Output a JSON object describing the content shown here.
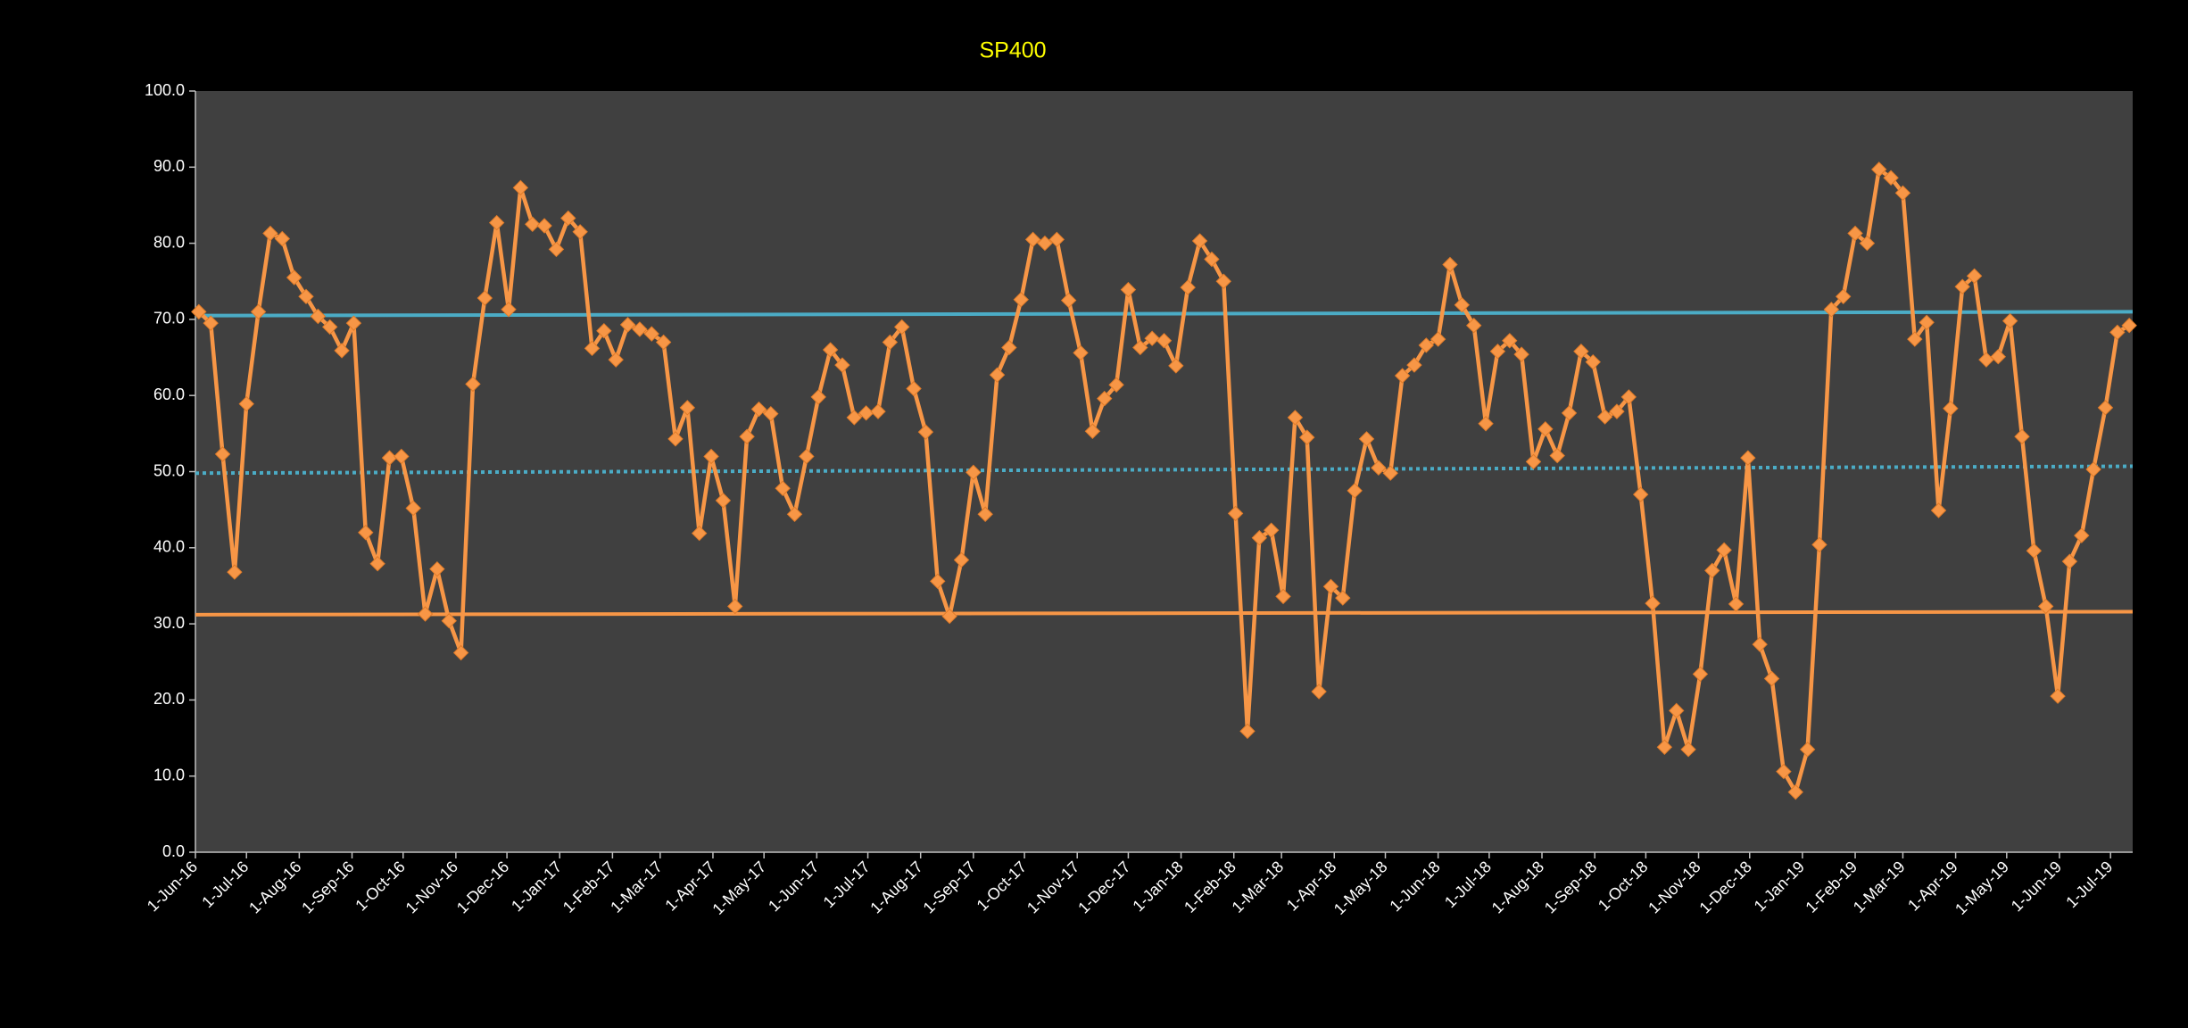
{
  "chart_data": {
    "type": "line",
    "title": "SP400",
    "x": [
      "2016-06-03",
      "2016-06-10",
      "2016-06-17",
      "2016-06-24",
      "2016-07-01",
      "2016-07-08",
      "2016-07-15",
      "2016-07-22",
      "2016-07-29",
      "2016-08-05",
      "2016-08-12",
      "2016-08-19",
      "2016-08-26",
      "2016-09-02",
      "2016-09-09",
      "2016-09-16",
      "2016-09-23",
      "2016-09-30",
      "2016-10-07",
      "2016-10-14",
      "2016-10-21",
      "2016-10-28",
      "2016-11-04",
      "2016-11-11",
      "2016-11-18",
      "2016-11-25",
      "2016-12-02",
      "2016-12-09",
      "2016-12-16",
      "2016-12-23",
      "2016-12-30",
      "2017-01-06",
      "2017-01-13",
      "2017-01-20",
      "2017-01-27",
      "2017-02-03",
      "2017-02-10",
      "2017-02-17",
      "2017-02-24",
      "2017-03-03",
      "2017-03-10",
      "2017-03-17",
      "2017-03-24",
      "2017-03-31",
      "2017-04-07",
      "2017-04-14",
      "2017-04-21",
      "2017-04-28",
      "2017-05-05",
      "2017-05-12",
      "2017-05-19",
      "2017-05-26",
      "2017-06-02",
      "2017-06-09",
      "2017-06-16",
      "2017-06-23",
      "2017-06-30",
      "2017-07-07",
      "2017-07-14",
      "2017-07-21",
      "2017-07-28",
      "2017-08-04",
      "2017-08-11",
      "2017-08-18",
      "2017-08-25",
      "2017-09-01",
      "2017-09-08",
      "2017-09-15",
      "2017-09-22",
      "2017-09-29",
      "2017-10-06",
      "2017-10-13",
      "2017-10-20",
      "2017-10-27",
      "2017-11-03",
      "2017-11-10",
      "2017-11-17",
      "2017-11-24",
      "2017-12-01",
      "2017-12-08",
      "2017-12-15",
      "2017-12-22",
      "2017-12-29",
      "2018-01-05",
      "2018-01-12",
      "2018-01-19",
      "2018-01-26",
      "2018-02-02",
      "2018-02-09",
      "2018-02-16",
      "2018-02-23",
      "2018-03-02",
      "2018-03-09",
      "2018-03-16",
      "2018-03-23",
      "2018-03-30",
      "2018-04-06",
      "2018-04-13",
      "2018-04-20",
      "2018-04-27",
      "2018-05-04",
      "2018-05-11",
      "2018-05-18",
      "2018-05-25",
      "2018-06-01",
      "2018-06-08",
      "2018-06-15",
      "2018-06-22",
      "2018-06-29",
      "2018-07-06",
      "2018-07-13",
      "2018-07-20",
      "2018-07-27",
      "2018-08-03",
      "2018-08-10",
      "2018-08-17",
      "2018-08-24",
      "2018-08-31",
      "2018-09-07",
      "2018-09-14",
      "2018-09-21",
      "2018-09-28",
      "2018-10-05",
      "2018-10-12",
      "2018-10-19",
      "2018-10-26",
      "2018-11-02",
      "2018-11-09",
      "2018-11-16",
      "2018-11-23",
      "2018-11-30",
      "2018-12-07",
      "2018-12-14",
      "2018-12-21",
      "2018-12-28",
      "2019-01-04",
      "2019-01-11",
      "2019-01-18",
      "2019-01-25",
      "2019-02-01",
      "2019-02-08",
      "2019-02-15",
      "2019-02-22",
      "2019-03-01",
      "2019-03-08",
      "2019-03-15",
      "2019-03-22",
      "2019-03-29",
      "2019-04-05",
      "2019-04-12",
      "2019-04-19",
      "2019-04-26",
      "2019-05-03",
      "2019-05-10",
      "2019-05-17",
      "2019-05-24",
      "2019-05-31",
      "2019-06-07",
      "2019-06-14",
      "2019-06-21",
      "2019-06-28",
      "2019-07-05",
      "2019-07-12"
    ],
    "series": [
      {
        "color": "#f79646",
        "values": [
          71.0,
          69.5,
          52.3,
          36.8,
          58.9,
          71.0,
          81.3,
          80.6,
          75.5,
          73.0,
          70.4,
          69.0,
          65.9,
          69.5,
          42.0,
          37.9,
          51.8,
          52.0,
          45.2,
          31.3,
          37.2,
          30.4,
          26.2,
          61.5,
          72.8,
          82.7,
          71.3,
          87.3,
          82.5,
          82.3,
          79.2,
          83.3,
          81.5,
          66.2,
          68.5,
          64.7,
          69.3,
          68.7,
          68.1,
          67.0,
          54.3,
          58.4,
          41.9,
          52.0,
          46.2,
          32.3,
          54.6,
          58.2,
          57.6,
          47.8,
          44.4,
          52.0,
          59.8,
          66.0,
          64.0,
          57.1,
          57.7,
          57.9,
          67.0,
          69.0,
          60.9,
          55.2,
          35.6,
          31.0,
          38.4,
          49.9,
          44.4,
          62.7,
          66.3,
          72.6,
          80.5,
          80.0,
          80.5,
          72.5,
          65.6,
          55.3,
          59.6,
          61.4,
          73.9,
          66.3,
          67.5,
          67.2,
          63.9,
          74.2,
          80.3,
          77.9,
          75.0,
          44.5,
          15.9,
          41.3,
          42.3,
          33.6,
          57.1,
          54.5,
          21.1,
          34.9,
          33.4,
          47.5,
          54.3,
          50.5,
          49.8,
          62.6,
          64.0,
          66.6,
          67.4,
          77.2,
          71.9,
          69.2,
          56.3,
          65.8,
          67.2,
          65.4,
          51.3,
          55.6,
          52.1,
          57.7,
          65.8,
          64.4,
          57.2,
          57.9,
          59.8,
          47.0,
          32.7,
          13.8,
          18.6,
          13.5,
          23.4,
          37.0,
          39.7,
          32.6,
          51.8,
          27.3,
          22.8,
          10.6,
          7.9,
          13.5,
          40.4,
          71.3,
          73.0,
          81.3,
          80.0,
          89.7,
          88.6,
          86.6,
          67.4,
          69.6,
          44.9,
          58.3,
          74.3,
          75.7,
          64.7,
          65.1,
          69.8,
          54.6,
          39.6,
          32.3,
          20.5,
          38.2,
          41.6,
          50.3,
          58.4,
          68.3,
          69.2
        ]
      }
    ],
    "trend_lines": [
      {
        "color": "#4bacc6",
        "dashed": false,
        "values": [
          70.5,
          71.0
        ]
      },
      {
        "color": "#4bacc6",
        "dashed": true,
        "values": [
          49.8,
          50.7
        ]
      },
      {
        "color": "#f79646",
        "dashed": false,
        "values": [
          31.2,
          31.6
        ]
      }
    ],
    "xlim": [
      "2016-06-01",
      "2019-07-14"
    ],
    "xticks": [
      {
        "value": "2016-06-01",
        "label": "1-Jun-16"
      },
      {
        "value": "2016-07-01",
        "label": "1-Jul-16"
      },
      {
        "value": "2016-08-01",
        "label": "1-Aug-16"
      },
      {
        "value": "2016-09-01",
        "label": "1-Sep-16"
      },
      {
        "value": "2016-10-01",
        "label": "1-Oct-16"
      },
      {
        "value": "2016-11-01",
        "label": "1-Nov-16"
      },
      {
        "value": "2016-12-01",
        "label": "1-Dec-16"
      },
      {
        "value": "2017-01-01",
        "label": "1-Jan-17"
      },
      {
        "value": "2017-02-01",
        "label": "1-Feb-17"
      },
      {
        "value": "2017-03-01",
        "label": "1-Mar-17"
      },
      {
        "value": "2017-04-01",
        "label": "1-Apr-17"
      },
      {
        "value": "2017-05-01",
        "label": "1-May-17"
      },
      {
        "value": "2017-06-01",
        "label": "1-Jun-17"
      },
      {
        "value": "2017-07-01",
        "label": "1-Jul-17"
      },
      {
        "value": "2017-08-01",
        "label": "1-Aug-17"
      },
      {
        "value": "2017-09-01",
        "label": "1-Sep-17"
      },
      {
        "value": "2017-10-01",
        "label": "1-Oct-17"
      },
      {
        "value": "2017-11-01",
        "label": "1-Nov-17"
      },
      {
        "value": "2017-12-01",
        "label": "1-Dec-17"
      },
      {
        "value": "2018-01-01",
        "label": "1-Jan-18"
      },
      {
        "value": "2018-02-01",
        "label": "1-Feb-18"
      },
      {
        "value": "2018-03-01",
        "label": "1-Mar-18"
      },
      {
        "value": "2018-04-01",
        "label": "1-Apr-18"
      },
      {
        "value": "2018-05-01",
        "label": "1-May-18"
      },
      {
        "value": "2018-06-01",
        "label": "1-Jun-18"
      },
      {
        "value": "2018-07-01",
        "label": "1-Jul-18"
      },
      {
        "value": "2018-08-01",
        "label": "1-Aug-18"
      },
      {
        "value": "2018-09-01",
        "label": "1-Sep-18"
      },
      {
        "value": "2018-10-01",
        "label": "1-Oct-18"
      },
      {
        "value": "2018-11-01",
        "label": "1-Nov-18"
      },
      {
        "value": "2018-12-01",
        "label": "1-Dec-18"
      },
      {
        "value": "2019-01-01",
        "label": "1-Jan-19"
      },
      {
        "value": "2019-02-01",
        "label": "1-Feb-19"
      },
      {
        "value": "2019-03-01",
        "label": "1-Mar-19"
      },
      {
        "value": "2019-04-01",
        "label": "1-Apr-19"
      },
      {
        "value": "2019-05-01",
        "label": "1-May-19"
      },
      {
        "value": "2019-06-01",
        "label": "1-Jun-19"
      },
      {
        "value": "2019-07-01",
        "label": "1-Jul-19"
      }
    ],
    "ylim": [
      0,
      100
    ],
    "yticks": [
      {
        "value": 0,
        "label": "0.0"
      },
      {
        "value": 10,
        "label": "10.0"
      },
      {
        "value": 20,
        "label": "20.0"
      },
      {
        "value": 30,
        "label": "30.0"
      },
      {
        "value": 40,
        "label": "40.0"
      },
      {
        "value": 50,
        "label": "50.0"
      },
      {
        "value": 60,
        "label": "60.0"
      },
      {
        "value": 70,
        "label": "70.0"
      },
      {
        "value": 80,
        "label": "80.0"
      },
      {
        "value": 90,
        "label": "90.0"
      },
      {
        "value": 100,
        "label": "100.0"
      }
    ],
    "grid": false
  }
}
